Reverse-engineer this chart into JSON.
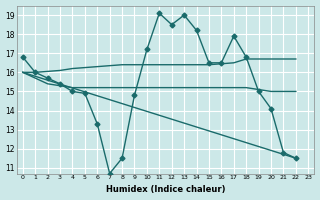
{
  "background_color": "#cce8e8",
  "grid_color": "#ffffff",
  "line_color": "#1a6b6b",
  "xlabel": "Humidex (Indice chaleur)",
  "ylim": [
    10.7,
    19.5
  ],
  "xlim": [
    -0.5,
    23.5
  ],
  "yticks": [
    11,
    12,
    13,
    14,
    15,
    16,
    17,
    18,
    19
  ],
  "xticks": [
    0,
    1,
    2,
    3,
    4,
    5,
    6,
    7,
    8,
    9,
    10,
    11,
    12,
    13,
    14,
    15,
    16,
    17,
    18,
    19,
    20,
    21,
    22,
    23
  ],
  "line1_x": [
    0,
    1,
    2,
    3,
    4,
    5,
    6,
    7,
    8,
    9,
    10,
    11,
    12,
    13,
    14,
    15,
    16,
    17,
    18,
    19,
    20,
    21,
    22
  ],
  "line1_y": [
    16.8,
    16.0,
    15.7,
    15.4,
    15.0,
    14.9,
    13.3,
    10.7,
    11.5,
    14.8,
    17.2,
    19.1,
    18.5,
    19.0,
    18.2,
    16.5,
    16.5,
    17.9,
    16.8,
    15.0,
    14.1,
    11.8,
    11.5
  ],
  "line2_x": [
    0,
    1,
    2,
    3,
    4,
    5,
    6,
    7,
    8,
    9,
    10,
    11,
    12,
    13,
    14,
    15,
    16,
    17,
    18,
    19,
    20,
    21,
    22
  ],
  "line2_y": [
    16.0,
    16.0,
    16.05,
    16.1,
    16.2,
    16.25,
    16.3,
    16.35,
    16.4,
    16.4,
    16.4,
    16.4,
    16.4,
    16.4,
    16.4,
    16.4,
    16.45,
    16.5,
    16.7,
    16.7,
    16.7,
    16.7,
    16.7
  ],
  "line3_x": [
    0,
    1,
    2,
    3,
    4,
    5,
    6,
    7,
    8,
    9,
    10,
    11,
    12,
    13,
    14,
    15,
    16,
    17,
    18,
    19,
    20,
    21,
    22
  ],
  "line3_y": [
    16.0,
    15.7,
    15.4,
    15.3,
    15.2,
    15.2,
    15.2,
    15.2,
    15.2,
    15.2,
    15.2,
    15.2,
    15.2,
    15.2,
    15.2,
    15.2,
    15.2,
    15.2,
    15.2,
    15.1,
    15.0,
    15.0,
    15.0
  ],
  "line4_x": [
    0,
    22
  ],
  "line4_y": [
    16.0,
    11.5
  ]
}
